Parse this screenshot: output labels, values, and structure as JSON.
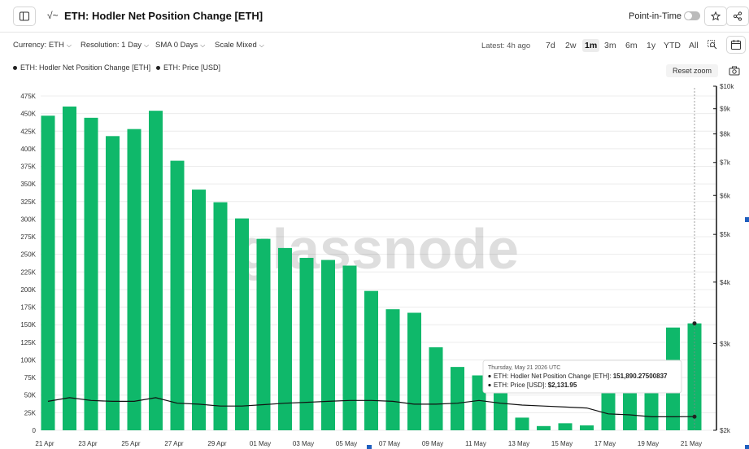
{
  "header": {
    "title": "ETH: Hodler Net Position Change [ETH]",
    "point_in_time_label": "Point-in-Time"
  },
  "controls": {
    "currency": "Currency: ETH",
    "resolution": "Resolution: 1 Day",
    "sma": "SMA 0 Days",
    "scale": "Scale Mixed",
    "latest": "Latest: 4h ago",
    "ranges": [
      "7d",
      "2w",
      "1m",
      "3m",
      "6m",
      "1y",
      "YTD",
      "All"
    ],
    "active_range": "1m",
    "reset_zoom": "Reset zoom"
  },
  "watermark": "glassnode",
  "chart_data": {
    "type": "bar",
    "title": "",
    "legend_placement": "top-left",
    "grid": true,
    "x": [
      "2026-04-21",
      "2026-04-22",
      "2026-04-23",
      "2026-04-24",
      "2026-04-25",
      "2026-04-26",
      "2026-04-27",
      "2026-04-28",
      "2026-04-29",
      "2026-04-30",
      "2026-05-01",
      "2026-05-02",
      "2026-05-03",
      "2026-05-04",
      "2026-05-05",
      "2026-05-06",
      "2026-05-07",
      "2026-05-08",
      "2026-05-09",
      "2026-05-10",
      "2026-05-11",
      "2026-05-12",
      "2026-05-13",
      "2026-05-14",
      "2026-05-15",
      "2026-05-16",
      "2026-05-17",
      "2026-05-18",
      "2026-05-19",
      "2026-05-20",
      "2026-05-21"
    ],
    "x_tick_labels": [
      "21 Apr",
      "23 Apr",
      "25 Apr",
      "27 Apr",
      "29 Apr",
      "01 May",
      "03 May",
      "05 May",
      "07 May",
      "09 May",
      "11 May",
      "13 May",
      "15 May",
      "17 May",
      "19 May",
      "21 May"
    ],
    "left_axis": {
      "ylim": [
        0,
        475000
      ],
      "tick_values": [
        0,
        25000,
        50000,
        75000,
        100000,
        125000,
        150000,
        175000,
        200000,
        225000,
        250000,
        275000,
        300000,
        325000,
        350000,
        375000,
        400000,
        425000,
        450000,
        475000
      ],
      "tick_labels": [
        "0",
        "25K",
        "50K",
        "75K",
        "100K",
        "125K",
        "150K",
        "175K",
        "200K",
        "225K",
        "250K",
        "275K",
        "300K",
        "325K",
        "350K",
        "375K",
        "400K",
        "425K",
        "450K",
        "475K"
      ]
    },
    "right_axis": {
      "scale": "log",
      "ylim": [
        2000,
        10000
      ],
      "tick_values": [
        2000,
        3000,
        4000,
        5000,
        6000,
        7000,
        8000,
        9000,
        10000
      ],
      "tick_labels": [
        "$2k",
        "$3k",
        "$4k",
        "$5k",
        "$6k",
        "$7k",
        "$8k",
        "$9k",
        "$10k"
      ]
    },
    "series": [
      {
        "name": "ETH: Hodler Net Position Change [ETH]",
        "type": "bar",
        "axis": "left",
        "color": "#0fb86a",
        "values": [
          447000,
          460000,
          444000,
          418000,
          428000,
          454000,
          383000,
          342000,
          324000,
          301000,
          272000,
          259000,
          245000,
          242000,
          234000,
          198000,
          172000,
          167000,
          118000,
          90000,
          78000,
          58000,
          18000,
          6000,
          10000,
          7000,
          63000,
          62000,
          64000,
          146000,
          151890.27500837
        ]
      },
      {
        "name": "ETH: Price [USD]",
        "type": "line",
        "axis": "right",
        "color": "#111111",
        "values": [
          2290,
          2330,
          2300,
          2290,
          2290,
          2330,
          2270,
          2260,
          2240,
          2240,
          2255,
          2270,
          2280,
          2290,
          2300,
          2300,
          2290,
          2260,
          2260,
          2270,
          2300,
          2270,
          2250,
          2240,
          2230,
          2220,
          2160,
          2150,
          2130,
          2130,
          2131.95
        ]
      }
    ],
    "tooltip": {
      "date": "Thursday, May 21 2026 UTC",
      "rows": [
        {
          "label": "ETH: Hodler Net Position Change [ETH]:",
          "value": "151,890.27500837"
        },
        {
          "label": "ETH: Price [USD]:",
          "value": "$2,131.95"
        }
      ]
    }
  }
}
